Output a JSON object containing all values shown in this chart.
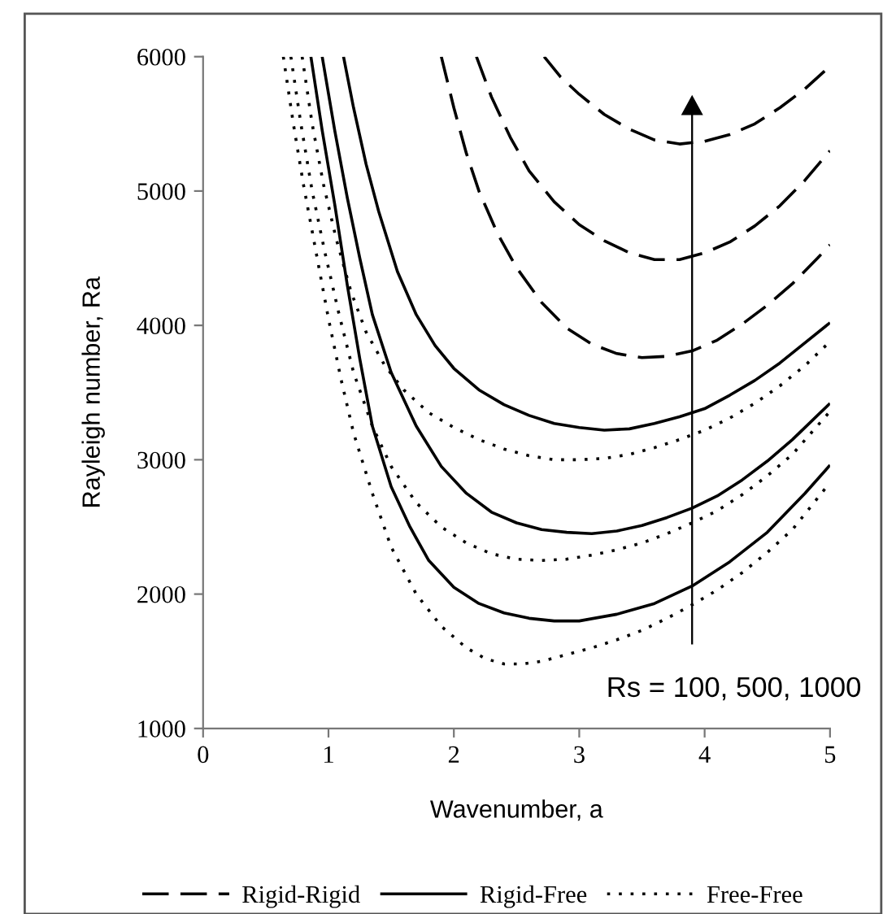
{
  "chart_data": {
    "type": "line",
    "xlabel": "Wavenumber, a",
    "ylabel": "Rayleigh number, Ra",
    "xlim": [
      0,
      5
    ],
    "ylim": [
      1000,
      6000
    ],
    "xticks": [
      0,
      1,
      2,
      3,
      4,
      5
    ],
    "yticks": [
      1000,
      2000,
      3000,
      4000,
      5000,
      6000
    ],
    "grid": false,
    "legend": "bottom",
    "marker": "none",
    "annotations": [
      "Rs = 100, 500, 1000"
    ],
    "series": [
      {
        "name": "Rigid-Rigid",
        "color": "#000000",
        "line_style": "dashed",
        "x": [
          1.9,
          2.0,
          2.1,
          2.2,
          2.35,
          2.5,
          2.7,
          2.9,
          3.1,
          3.3,
          3.5,
          3.7,
          3.9,
          4.1,
          4.3,
          4.5,
          4.7,
          4.9,
          5.0
        ],
        "values": [
          6000,
          5620,
          5280,
          5000,
          4680,
          4430,
          4170,
          3980,
          3860,
          3790,
          3760,
          3770,
          3810,
          3890,
          4010,
          4150,
          4310,
          4500,
          4600
        ]
      },
      {
        "color": "#000000",
        "line_style": "dashed",
        "x": [
          2.18,
          2.3,
          2.45,
          2.6,
          2.8,
          3.0,
          3.2,
          3.4,
          3.6,
          3.8,
          4.0,
          4.2,
          4.4,
          4.6,
          4.8,
          5.0
        ],
        "values": [
          6000,
          5700,
          5400,
          5150,
          4920,
          4750,
          4630,
          4540,
          4490,
          4490,
          4540,
          4620,
          4740,
          4890,
          5080,
          5300
        ]
      },
      {
        "color": "#000000",
        "line_style": "dashed",
        "x": [
          2.72,
          2.85,
          3.0,
          3.2,
          3.4,
          3.6,
          3.8,
          4.0,
          4.2,
          4.4,
          4.6,
          4.8,
          5.0
        ],
        "values": [
          6000,
          5850,
          5720,
          5570,
          5460,
          5380,
          5350,
          5370,
          5420,
          5500,
          5620,
          5760,
          5930
        ]
      },
      {
        "name": "Rigid-Free",
        "color": "#000000",
        "line_style": "solid",
        "x": [
          0.86,
          0.95,
          1.05,
          1.15,
          1.25,
          1.35,
          1.5,
          1.65,
          1.8,
          2.0,
          2.2,
          2.4,
          2.6,
          2.8,
          3.0,
          3.3,
          3.6,
          3.9,
          4.2,
          4.5,
          4.8,
          5.0
        ],
        "values": [
          6000,
          5450,
          4900,
          4300,
          3750,
          3250,
          2800,
          2500,
          2250,
          2050,
          1930,
          1860,
          1820,
          1800,
          1800,
          1850,
          1930,
          2060,
          2240,
          2460,
          2750,
          2960
        ]
      },
      {
        "color": "#000000",
        "line_style": "solid",
        "x": [
          0.95,
          1.05,
          1.15,
          1.25,
          1.35,
          1.5,
          1.7,
          1.9,
          2.1,
          2.3,
          2.5,
          2.7,
          2.9,
          3.1,
          3.3,
          3.5,
          3.7,
          3.9,
          4.1,
          4.3,
          4.5,
          4.7,
          5.0
        ],
        "values": [
          6000,
          5450,
          4950,
          4500,
          4080,
          3650,
          3250,
          2950,
          2750,
          2610,
          2530,
          2480,
          2460,
          2450,
          2470,
          2510,
          2570,
          2640,
          2730,
          2850,
          2990,
          3150,
          3420
        ]
      },
      {
        "color": "#000000",
        "line_style": "solid",
        "x": [
          1.12,
          1.2,
          1.3,
          1.4,
          1.55,
          1.7,
          1.85,
          2.0,
          2.2,
          2.4,
          2.6,
          2.8,
          3.0,
          3.2,
          3.4,
          3.6,
          3.8,
          4.0,
          4.2,
          4.4,
          4.6,
          4.8,
          5.0
        ],
        "values": [
          6000,
          5620,
          5200,
          4850,
          4400,
          4080,
          3850,
          3680,
          3520,
          3410,
          3330,
          3270,
          3240,
          3220,
          3230,
          3270,
          3320,
          3380,
          3480,
          3590,
          3720,
          3870,
          4020
        ]
      },
      {
        "name": "Free-Free",
        "color": "#000000",
        "line_style": "dotted",
        "x": [
          0.64,
          0.72,
          0.8,
          0.9,
          1.0,
          1.1,
          1.2,
          1.35,
          1.5,
          1.7,
          1.9,
          2.1,
          2.25,
          2.4,
          2.55,
          2.7,
          2.9,
          3.1,
          3.3,
          3.5,
          3.7,
          3.9,
          4.1,
          4.3,
          4.5,
          4.7,
          5.0
        ],
        "values": [
          6000,
          5500,
          5050,
          4550,
          4050,
          3600,
          3200,
          2750,
          2350,
          2000,
          1760,
          1600,
          1520,
          1480,
          1480,
          1500,
          1550,
          1600,
          1660,
          1730,
          1820,
          1920,
          2030,
          2160,
          2310,
          2480,
          2830
        ]
      },
      {
        "color": "#000000",
        "line_style": "dotted",
        "x": [
          0.7,
          0.78,
          0.87,
          0.97,
          1.08,
          1.2,
          1.35,
          1.5,
          1.7,
          1.9,
          2.1,
          2.3,
          2.5,
          2.7,
          2.9,
          3.1,
          3.3,
          3.5,
          3.7,
          3.9,
          4.1,
          4.3,
          4.5,
          4.7,
          5.0
        ],
        "values": [
          6000,
          5500,
          5000,
          4550,
          4100,
          3650,
          3250,
          2950,
          2680,
          2500,
          2380,
          2300,
          2260,
          2250,
          2260,
          2290,
          2330,
          2380,
          2450,
          2530,
          2620,
          2740,
          2880,
          3040,
          3360
        ]
      },
      {
        "color": "#000000",
        "line_style": "dotted",
        "x": [
          0.79,
          0.87,
          0.96,
          1.06,
          1.18,
          1.3,
          1.45,
          1.6,
          1.8,
          2.0,
          2.2,
          2.4,
          2.6,
          2.8,
          3.0,
          3.2,
          3.4,
          3.6,
          3.8,
          4.0,
          4.2,
          4.4,
          4.6,
          4.8,
          5.0
        ],
        "values": [
          6000,
          5500,
          5050,
          4650,
          4250,
          3950,
          3700,
          3520,
          3350,
          3240,
          3150,
          3080,
          3030,
          3000,
          3000,
          3010,
          3040,
          3090,
          3150,
          3220,
          3310,
          3420,
          3550,
          3700,
          3880
        ]
      }
    ]
  }
}
